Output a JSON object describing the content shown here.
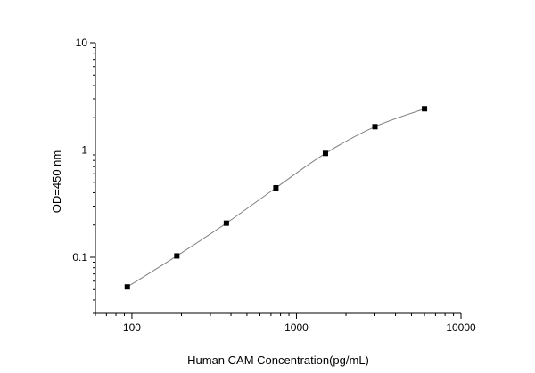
{
  "chart_data": {
    "type": "scatter",
    "xlabel": "Human CAM  Concentration(pg/mL)",
    "ylabel": "OD=450 nm",
    "x_scale": "log",
    "y_scale": "log",
    "xlim": [
      60,
      10000
    ],
    "ylim": [
      0.03,
      10
    ],
    "x_ticks": [
      100,
      1000,
      10000
    ],
    "x_tick_labels": [
      "100",
      "1000",
      "10000"
    ],
    "y_ticks": [
      0.1,
      1,
      10
    ],
    "y_tick_labels": [
      "0.1",
      "1",
      "10"
    ],
    "grid": false,
    "fit_line": true,
    "series": [
      {
        "x": [
          93.75,
          187.5,
          375,
          750,
          1500,
          3000,
          6000
        ],
        "y": [
          0.053,
          0.103,
          0.208,
          0.444,
          0.93,
          1.65,
          2.42
        ]
      }
    ],
    "colors": {
      "axis": "#000000",
      "marker": "#000000",
      "line": "#808080"
    }
  }
}
